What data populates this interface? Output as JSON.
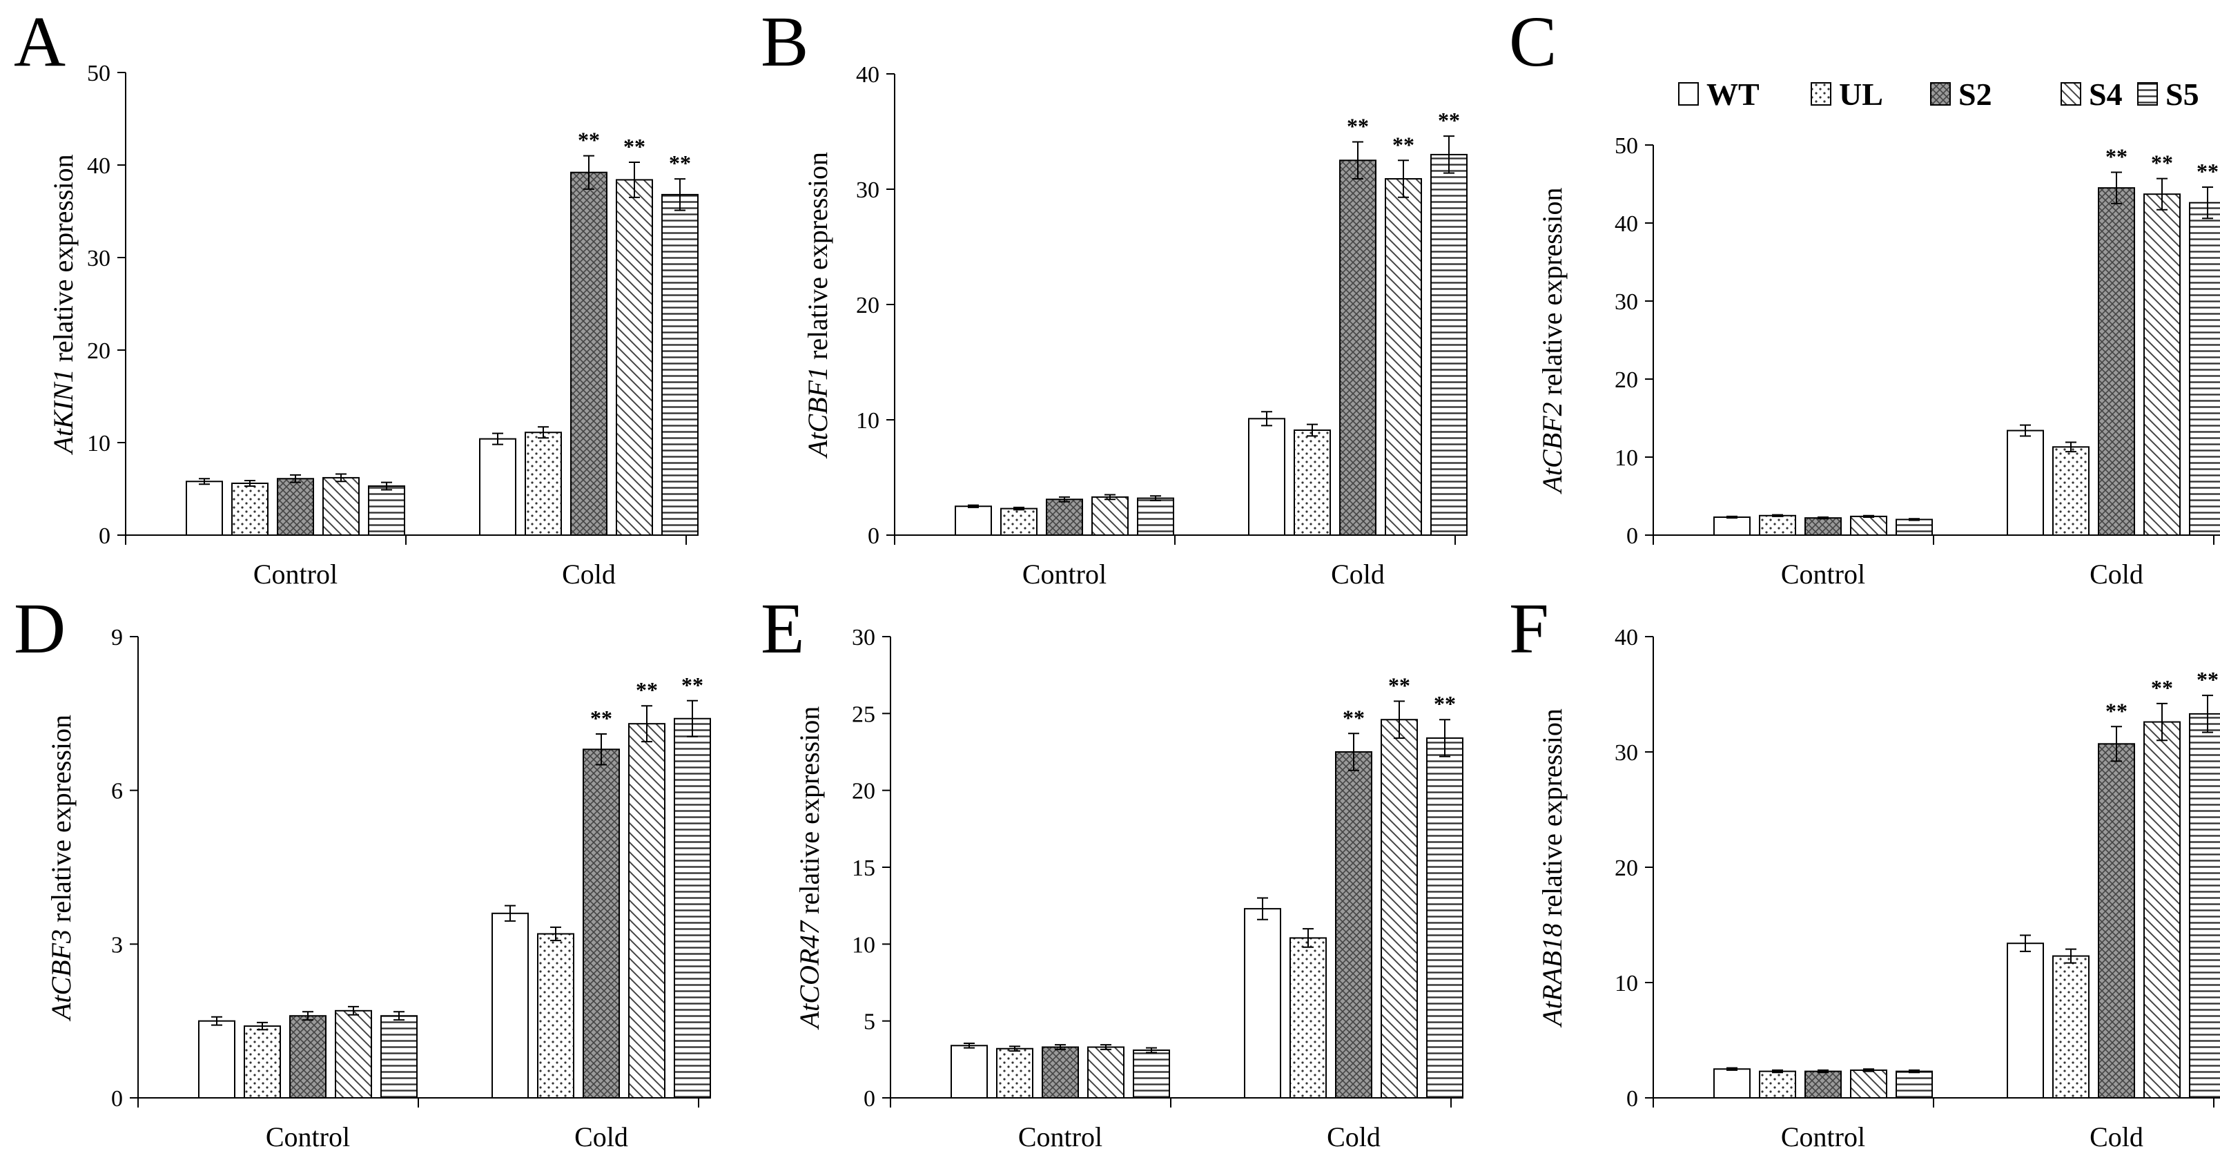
{
  "series_names": [
    "WT",
    "UL",
    "S2",
    "S4",
    "S5"
  ],
  "chart_data": [
    {
      "type": "bar",
      "panel": "A",
      "gene": "AtKIN1",
      "ylabel_suffix": " relative expression",
      "categories": [
        "Control",
        "Cold"
      ],
      "ylim": [
        0,
        50
      ],
      "yticks": [
        0,
        10,
        20,
        30,
        40,
        50
      ],
      "series": [
        {
          "name": "WT",
          "values": [
            5.8,
            10.4
          ],
          "errors": [
            0.3,
            0.6
          ],
          "sig": [
            "",
            ""
          ]
        },
        {
          "name": "UL",
          "values": [
            5.6,
            11.1
          ],
          "errors": [
            0.3,
            0.6
          ],
          "sig": [
            "",
            ""
          ]
        },
        {
          "name": "S2",
          "values": [
            6.1,
            39.2
          ],
          "errors": [
            0.4,
            1.8
          ],
          "sig": [
            "",
            "**"
          ]
        },
        {
          "name": "S4",
          "values": [
            6.2,
            38.4
          ],
          "errors": [
            0.4,
            1.9
          ],
          "sig": [
            "",
            "**"
          ]
        },
        {
          "name": "S5",
          "values": [
            5.3,
            36.8
          ],
          "errors": [
            0.4,
            1.7
          ],
          "sig": [
            "",
            "**"
          ]
        }
      ]
    },
    {
      "type": "bar",
      "panel": "B",
      "gene": "AtCBF1",
      "ylabel_suffix": " relative expression",
      "categories": [
        "Control",
        "Cold"
      ],
      "ylim": [
        0,
        40
      ],
      "yticks": [
        0,
        10,
        20,
        30,
        40
      ],
      "series": [
        {
          "name": "WT",
          "values": [
            2.5,
            10.1
          ],
          "errors": [
            0.1,
            0.6
          ],
          "sig": [
            "",
            ""
          ]
        },
        {
          "name": "UL",
          "values": [
            2.3,
            9.1
          ],
          "errors": [
            0.1,
            0.5
          ],
          "sig": [
            "",
            ""
          ]
        },
        {
          "name": "S2",
          "values": [
            3.1,
            32.5
          ],
          "errors": [
            0.2,
            1.6
          ],
          "sig": [
            "",
            "**"
          ]
        },
        {
          "name": "S4",
          "values": [
            3.3,
            30.9
          ],
          "errors": [
            0.2,
            1.6
          ],
          "sig": [
            "",
            "**"
          ]
        },
        {
          "name": "S5",
          "values": [
            3.2,
            33.0
          ],
          "errors": [
            0.2,
            1.6
          ],
          "sig": [
            "",
            "**"
          ]
        }
      ]
    },
    {
      "type": "bar",
      "panel": "C",
      "gene": "AtCBF2",
      "ylabel_suffix": " relative expression",
      "categories": [
        "Control",
        "Cold"
      ],
      "ylim": [
        0,
        50
      ],
      "yticks": [
        0,
        10,
        20,
        30,
        40,
        50
      ],
      "series": [
        {
          "name": "WT",
          "values": [
            2.3,
            13.4
          ],
          "errors": [
            0.1,
            0.7
          ],
          "sig": [
            "",
            ""
          ]
        },
        {
          "name": "UL",
          "values": [
            2.5,
            11.3
          ],
          "errors": [
            0.1,
            0.6
          ],
          "sig": [
            "",
            ""
          ]
        },
        {
          "name": "S2",
          "values": [
            2.2,
            44.5
          ],
          "errors": [
            0.1,
            2.0
          ],
          "sig": [
            "",
            "**"
          ]
        },
        {
          "name": "S4",
          "values": [
            2.4,
            43.7
          ],
          "errors": [
            0.1,
            2.0
          ],
          "sig": [
            "",
            "**"
          ]
        },
        {
          "name": "S5",
          "values": [
            2.0,
            42.6
          ],
          "errors": [
            0.1,
            2.0
          ],
          "sig": [
            "",
            "**"
          ]
        }
      ]
    },
    {
      "type": "bar",
      "panel": "D",
      "gene": "AtCBF3",
      "ylabel_suffix": " relative expression",
      "categories": [
        "Control",
        "Cold"
      ],
      "ylim": [
        0,
        9
      ],
      "yticks": [
        0,
        3,
        6,
        9
      ],
      "series": [
        {
          "name": "WT",
          "values": [
            1.5,
            3.6
          ],
          "errors": [
            0.08,
            0.15
          ],
          "sig": [
            "",
            ""
          ]
        },
        {
          "name": "UL",
          "values": [
            1.4,
            3.2
          ],
          "errors": [
            0.07,
            0.13
          ],
          "sig": [
            "",
            ""
          ]
        },
        {
          "name": "S2",
          "values": [
            1.6,
            6.8
          ],
          "errors": [
            0.08,
            0.3
          ],
          "sig": [
            "",
            "**"
          ]
        },
        {
          "name": "S4",
          "values": [
            1.7,
            7.3
          ],
          "errors": [
            0.08,
            0.35
          ],
          "sig": [
            "",
            "**"
          ]
        },
        {
          "name": "S5",
          "values": [
            1.6,
            7.4
          ],
          "errors": [
            0.08,
            0.35
          ],
          "sig": [
            "",
            "**"
          ]
        }
      ]
    },
    {
      "type": "bar",
      "panel": "E",
      "gene": "AtCOR47",
      "ylabel_suffix": " relative expression",
      "categories": [
        "Control",
        "Cold"
      ],
      "ylim": [
        0,
        30
      ],
      "yticks": [
        0,
        5,
        10,
        15,
        20,
        25,
        30
      ],
      "series": [
        {
          "name": "WT",
          "values": [
            3.4,
            12.3
          ],
          "errors": [
            0.15,
            0.7
          ],
          "sig": [
            "",
            ""
          ]
        },
        {
          "name": "UL",
          "values": [
            3.2,
            10.4
          ],
          "errors": [
            0.15,
            0.6
          ],
          "sig": [
            "",
            ""
          ]
        },
        {
          "name": "S2",
          "values": [
            3.3,
            22.5
          ],
          "errors": [
            0.15,
            1.2
          ],
          "sig": [
            "",
            "**"
          ]
        },
        {
          "name": "S4",
          "values": [
            3.3,
            24.6
          ],
          "errors": [
            0.15,
            1.2
          ],
          "sig": [
            "",
            "**"
          ]
        },
        {
          "name": "S5",
          "values": [
            3.1,
            23.4
          ],
          "errors": [
            0.15,
            1.2
          ],
          "sig": [
            "",
            "**"
          ]
        }
      ]
    },
    {
      "type": "bar",
      "panel": "F",
      "gene": "AtRAB18",
      "ylabel_suffix": " relative expression",
      "categories": [
        "Control",
        "Cold"
      ],
      "ylim": [
        0,
        40
      ],
      "yticks": [
        0,
        10,
        20,
        30,
        40
      ],
      "series": [
        {
          "name": "WT",
          "values": [
            2.5,
            13.4
          ],
          "errors": [
            0.1,
            0.7
          ],
          "sig": [
            "",
            ""
          ]
        },
        {
          "name": "UL",
          "values": [
            2.3,
            12.3
          ],
          "errors": [
            0.1,
            0.6
          ],
          "sig": [
            "",
            ""
          ]
        },
        {
          "name": "S2",
          "values": [
            2.3,
            30.7
          ],
          "errors": [
            0.1,
            1.5
          ],
          "sig": [
            "",
            "**"
          ]
        },
        {
          "name": "S4",
          "values": [
            2.4,
            32.6
          ],
          "errors": [
            0.1,
            1.6
          ],
          "sig": [
            "",
            "**"
          ]
        },
        {
          "name": "S5",
          "values": [
            2.3,
            33.3
          ],
          "errors": [
            0.1,
            1.6
          ],
          "sig": [
            "",
            "**"
          ]
        }
      ]
    }
  ]
}
